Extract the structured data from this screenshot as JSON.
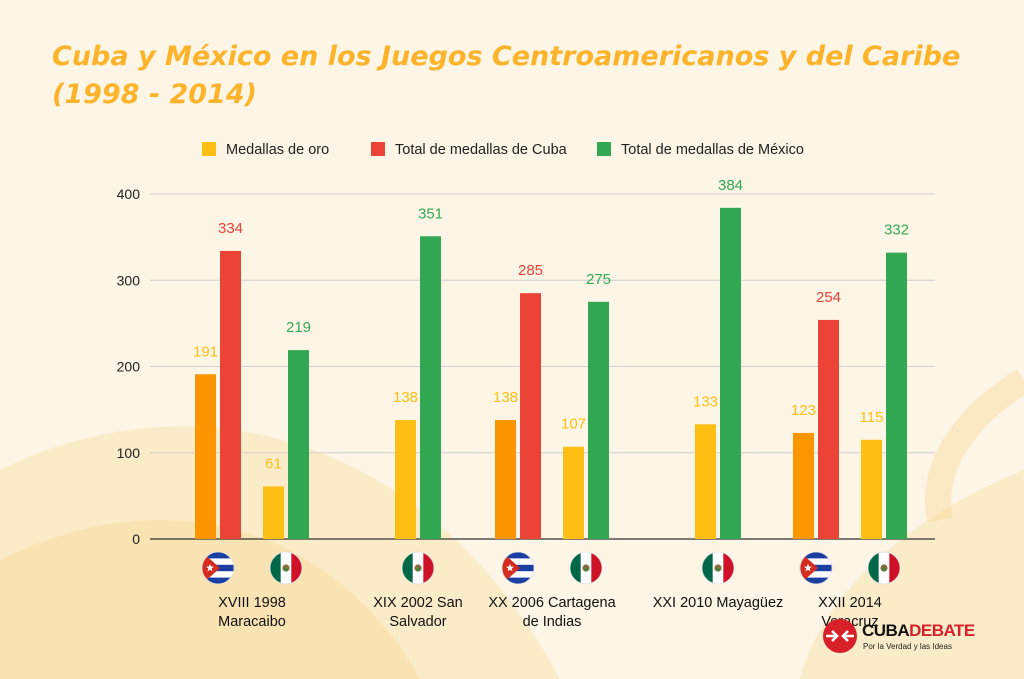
{
  "colors": {
    "gold": "#fdbf13",
    "gold_cuba": "#fb9500",
    "cuba": "#eb4335",
    "mexico": "#33a853",
    "title": "#fdb32a"
  },
  "logo": {
    "brand_part1": "CUBA",
    "brand_part2": "DEBATE",
    "tagline": "Por la Verdad y las Ideas"
  },
  "chart_data": {
    "type": "bar",
    "title": "Cuba y México en los Juegos Centroamericanos y del Caribe (1998 - 2014)",
    "xlabel": "",
    "ylabel": "",
    "ylim": [
      0,
      400
    ],
    "yticks": [
      0,
      100,
      200,
      300,
      400
    ],
    "grid": true,
    "legend_position": "top",
    "legend": [
      {
        "label": "Medallas de oro",
        "color": "#fdbf13"
      },
      {
        "label": "Total de medallas de Cuba",
        "color": "#eb4335"
      },
      {
        "label": "Total de medallas de México",
        "color": "#33a853"
      }
    ],
    "groups": [
      {
        "label": "XVIII 1998 Maracaibo",
        "countries": [
          {
            "flag": "cuba-flag",
            "gold": 191,
            "total": 334
          },
          {
            "flag": "mexico-flag",
            "gold": 61,
            "total": 219
          }
        ]
      },
      {
        "label": "XIX 2002 San Salvador",
        "countries": [
          {
            "flag": "mexico-flag",
            "gold": 138,
            "total": 351
          }
        ]
      },
      {
        "label": "XX 2006 Cartagena de Indias",
        "countries": [
          {
            "flag": "cuba-flag",
            "gold": 138,
            "total": 285
          },
          {
            "flag": "mexico-flag",
            "gold": 107,
            "total": 275
          }
        ]
      },
      {
        "label": "XXI 2010 Mayagüez",
        "countries": [
          {
            "flag": "mexico-flag",
            "gold": 133,
            "total": 384
          }
        ]
      },
      {
        "label": "XXII 2014 Veracruz",
        "countries": [
          {
            "flag": "cuba-flag",
            "gold": 123,
            "total": 254
          },
          {
            "flag": "mexico-flag",
            "gold": 115,
            "total": 332
          }
        ]
      }
    ]
  }
}
